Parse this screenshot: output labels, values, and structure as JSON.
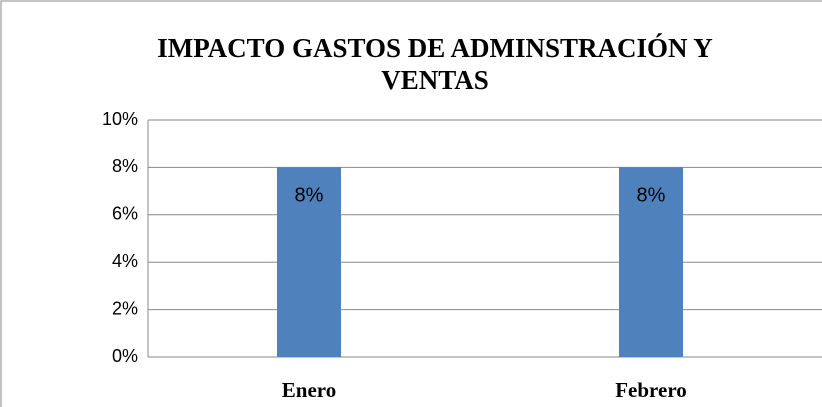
{
  "chart_data": {
    "type": "bar",
    "title": "IMPACTO GASTOS DE ADMINSTRACIÓN Y VENTAS",
    "categories": [
      "Enero",
      "Febrero"
    ],
    "values": [
      8,
      8
    ],
    "value_labels": [
      "8%",
      "8%"
    ],
    "color": "#4f81bd",
    "ylim": [
      0,
      10
    ],
    "yticks": [
      {
        "value": 0,
        "label": "0%"
      },
      {
        "value": 2,
        "label": "2%"
      },
      {
        "value": 4,
        "label": "4%"
      },
      {
        "value": 6,
        "label": "6%"
      },
      {
        "value": 8,
        "label": "8%"
      },
      {
        "value": 10,
        "label": "10%"
      }
    ],
    "grid": true
  }
}
